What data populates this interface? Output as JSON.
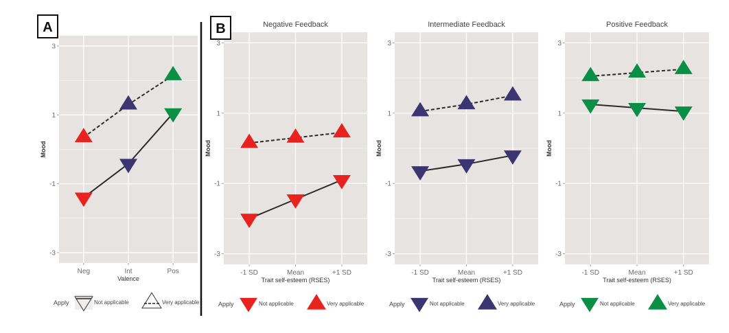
{
  "chart_data": [
    {
      "type": "line",
      "panel_label": "A",
      "title": "",
      "xlabel": "Valence",
      "ylabel": "Mood",
      "categories": [
        "Neg",
        "Int",
        "Pos"
      ],
      "ylim": [
        -3.3,
        3.3
      ],
      "yticks": [
        3,
        1,
        -1,
        -3
      ],
      "ytick_labels": [
        "3",
        "1",
        "-1",
        "-3"
      ],
      "grid": true,
      "point_colors": [
        "#e8231f",
        "#3b3571",
        "#0b8f45"
      ],
      "series": [
        {
          "name": "Not applicable",
          "marker": "triangle-down",
          "line": "solid",
          "values": [
            -1.4,
            -0.42,
            1.05
          ]
        },
        {
          "name": "Very applicable",
          "marker": "triangle-up",
          "line": "dashed",
          "values": [
            0.35,
            1.3,
            2.15
          ]
        }
      ],
      "legend": {
        "title": "Apply",
        "entries": [
          "Not applicable",
          "Very applicable"
        ],
        "placement": "bottom",
        "style": "outline"
      }
    },
    {
      "type": "line",
      "panel_label": "B",
      "title": "Negative Feedback",
      "xlabel": "Trait self-esteem (RSES)",
      "ylabel": "Mood",
      "categories": [
        "-1 SD",
        "Mean",
        "+1 SD"
      ],
      "ylim": [
        -3.3,
        3.3
      ],
      "yticks": [
        3,
        1,
        -1,
        -3
      ],
      "ytick_labels": [
        "3",
        "1",
        "-1",
        "-3"
      ],
      "grid": true,
      "color": "#e8231f",
      "series": [
        {
          "name": "Not applicable",
          "marker": "triangle-down",
          "line": "solid",
          "values": [
            -2.0,
            -1.45,
            -0.9
          ]
        },
        {
          "name": "Very applicable",
          "marker": "triangle-up",
          "line": "dashed",
          "values": [
            0.15,
            0.3,
            0.45
          ]
        }
      ],
      "legend": {
        "title": "Apply",
        "entries": [
          "Not applicable",
          "Very applicable"
        ],
        "placement": "bottom",
        "style": "filled"
      }
    },
    {
      "type": "line",
      "panel_label": "",
      "title": "Intermediate Feedback",
      "xlabel": "Trait self-esteem (RSES)",
      "ylabel": "Mood",
      "categories": [
        "-1 SD",
        "Mean",
        "+1 SD"
      ],
      "ylim": [
        -3.3,
        3.3
      ],
      "yticks": [
        3,
        1,
        -1,
        -3
      ],
      "ytick_labels": [
        "3",
        "1",
        "-1",
        "-3"
      ],
      "grid": true,
      "color": "#3b3571",
      "series": [
        {
          "name": "Not applicable",
          "marker": "triangle-down",
          "line": "solid",
          "values": [
            -0.65,
            -0.45,
            -0.2
          ]
        },
        {
          "name": "Very applicable",
          "marker": "triangle-up",
          "line": "dashed",
          "values": [
            1.05,
            1.25,
            1.5
          ]
        }
      ],
      "legend": {
        "title": "Apply",
        "entries": [
          "Not applicable",
          "Very applicable"
        ],
        "placement": "bottom",
        "style": "filled"
      }
    },
    {
      "type": "line",
      "panel_label": "",
      "title": "Positive Feedback",
      "xlabel": "Trait self-esteem (RSES)",
      "ylabel": "Mood",
      "categories": [
        "-1 SD",
        "Mean",
        "+1 SD"
      ],
      "ylim": [
        -3.3,
        3.3
      ],
      "yticks": [
        3,
        1,
        -1,
        -3
      ],
      "ytick_labels": [
        "3",
        "1",
        "-1",
        "-3"
      ],
      "grid": true,
      "color": "#0b8f45",
      "series": [
        {
          "name": "Not applicable",
          "marker": "triangle-down",
          "line": "solid",
          "values": [
            1.25,
            1.15,
            1.05
          ]
        },
        {
          "name": "Very applicable",
          "marker": "triangle-up",
          "line": "dashed",
          "values": [
            2.05,
            2.15,
            2.25
          ]
        }
      ],
      "legend": {
        "title": "Apply",
        "entries": [
          "Not applicable",
          "Very applicable"
        ],
        "placement": "bottom",
        "style": "filled"
      }
    }
  ],
  "colors": {
    "panel_bg": "#e6e3e1",
    "grid": "#ffffff",
    "line": "#2b2b2b"
  }
}
